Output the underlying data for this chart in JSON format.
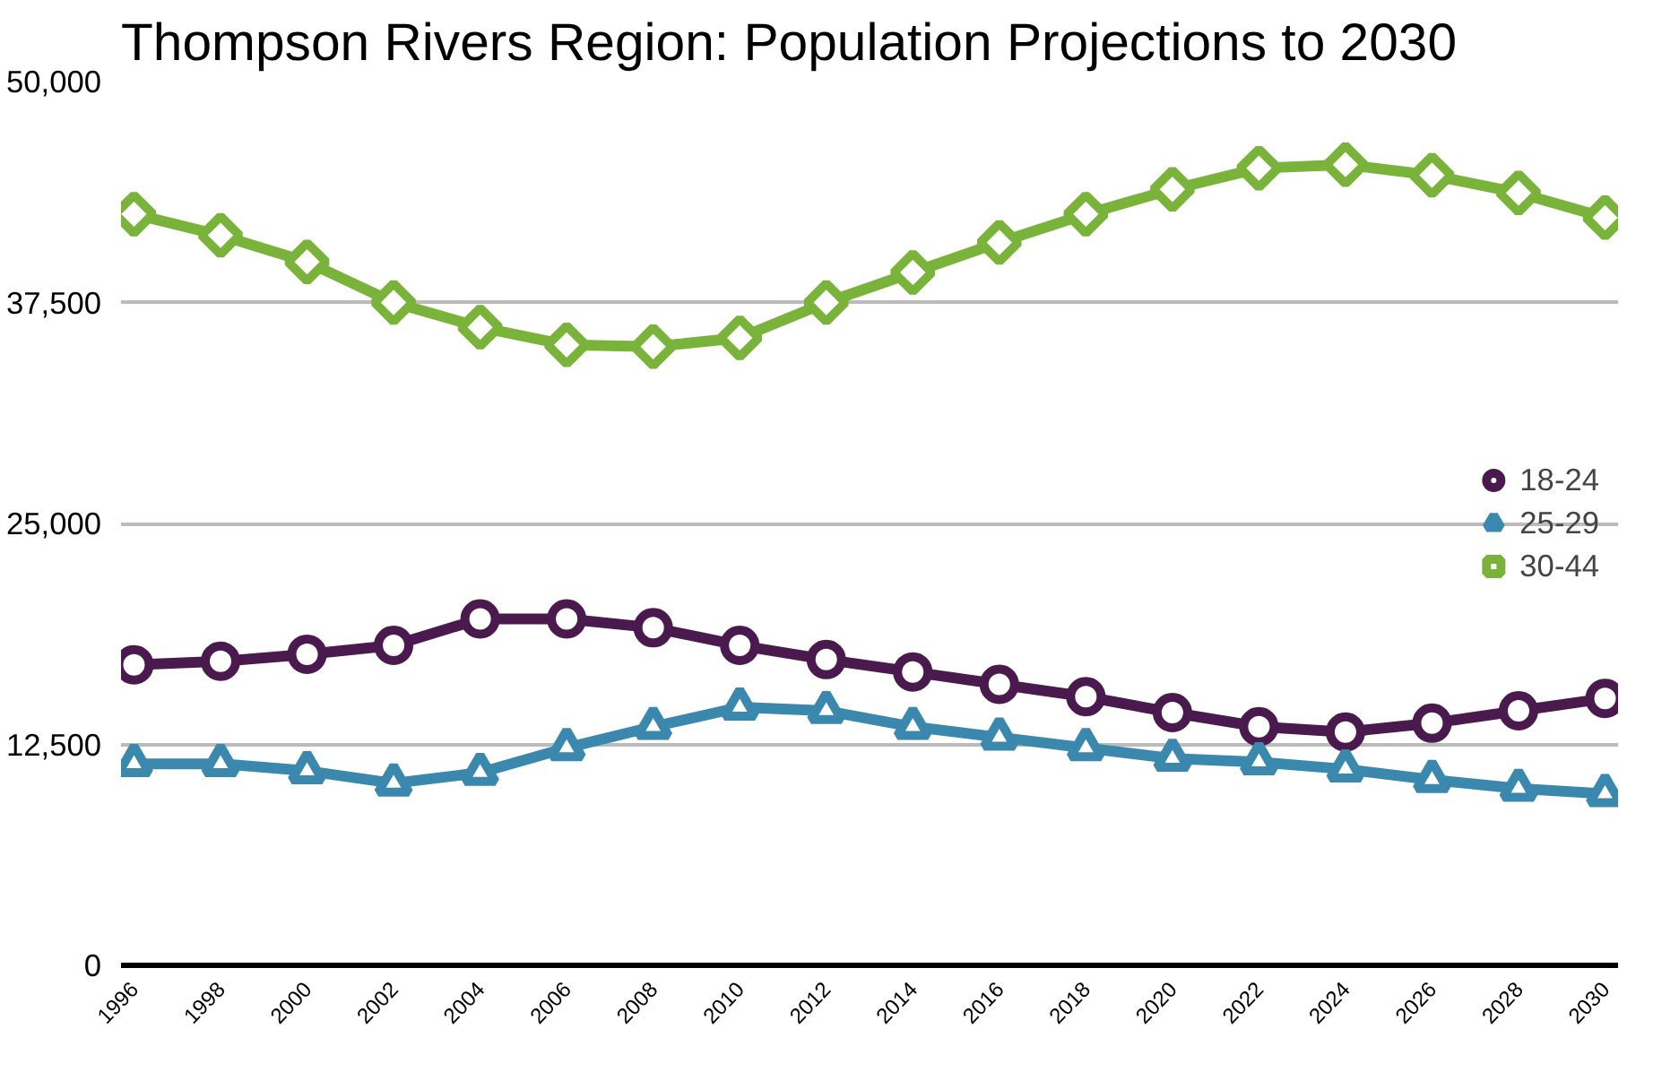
{
  "chart_data": {
    "type": "line",
    "title": "Thompson Rivers Region: Population Projections to 2030",
    "categories": [
      "1996",
      "1998",
      "2000",
      "2002",
      "2004",
      "2006",
      "2008",
      "2010",
      "2012",
      "2014",
      "2016",
      "2018",
      "2020",
      "2022",
      "2024",
      "2026",
      "2028",
      "2030"
    ],
    "series": [
      {
        "name": "18-24",
        "color": "#4a1a4f",
        "marker": "circle",
        "values": [
          17000,
          17200,
          17600,
          18100,
          19600,
          19600,
          19100,
          18100,
          17300,
          16600,
          15900,
          15200,
          14300,
          13500,
          13200,
          13700,
          14400,
          15100
        ]
      },
      {
        "name": "25-29",
        "color": "#3a88ad",
        "marker": "triangle",
        "values": [
          11400,
          11400,
          11000,
          10300,
          10900,
          12300,
          13500,
          14600,
          14400,
          13500,
          12900,
          12300,
          11700,
          11500,
          11100,
          10500,
          10000,
          9700
        ]
      },
      {
        "name": "30-44",
        "color": "#7ab33a",
        "marker": "diamond",
        "values": [
          42500,
          41300,
          39800,
          37500,
          36100,
          35100,
          35000,
          35500,
          37500,
          39200,
          40900,
          42500,
          43900,
          45100,
          45300,
          44700,
          43700,
          42300
        ]
      }
    ],
    "ylim": [
      0,
      50000
    ],
    "yticks": [
      {
        "value": 0,
        "label": "0"
      },
      {
        "value": 12500,
        "label": "12,500"
      },
      {
        "value": 25000,
        "label": "25,000"
      },
      {
        "value": 37500,
        "label": "37,500"
      },
      {
        "value": 50000,
        "label": "50,000"
      }
    ],
    "grid": "y",
    "legend": "right"
  }
}
